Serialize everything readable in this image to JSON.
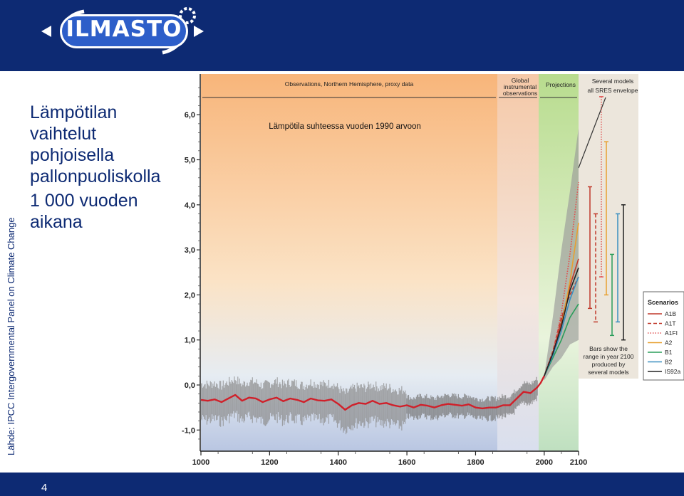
{
  "header": {
    "logo_text": "ILMASTO"
  },
  "source": "Lähde: IPCC Intergovernmental Panel on Climate Change",
  "title_lines": [
    "Lämpötilan",
    "vaihtelut",
    "pohjoisella",
    "pallonpuoliskolla",
    "1 000 vuoden",
    "aikana"
  ],
  "page_number": "4",
  "chart_data": {
    "type": "line",
    "annotation": "Lämpötila suhteessa vuoden 1990 arvoon",
    "x_ticks": [
      "1000",
      "1200",
      "1400",
      "1600",
      "1800",
      "2000",
      "2100"
    ],
    "y_ticks": [
      "-1,0",
      "0,0",
      "1,0",
      "2,0",
      "3,0",
      "4,0",
      "5,0",
      "6,0"
    ],
    "xlim": [
      1000,
      2100
    ],
    "ylim": [
      -1.4,
      7.2
    ],
    "panels": {
      "observations": "Observations, Northern Hemisphere, proxy data",
      "instrumental": [
        "Global",
        "instrumental",
        "observations"
      ],
      "projections": "Projections",
      "envelope": [
        "Several models",
        "all SRES envelope"
      ]
    },
    "bars_note": [
      "Bars show the",
      "range in year 2100",
      "produced by",
      "several models"
    ],
    "legend_title": "Scenarios",
    "series": [
      {
        "name": "A1B",
        "color": "#c0392b",
        "dash": "solid",
        "x": [
          2000,
          2025,
          2050,
          2075,
          2100
        ],
        "values": [
          0.2,
          0.7,
          1.4,
          2.2,
          2.8
        ],
        "range": [
          1.7,
          4.4
        ]
      },
      {
        "name": "A1T",
        "color": "#c0392b",
        "dash": "dashed",
        "x": [
          2000,
          2025,
          2050,
          2075,
          2100
        ],
        "values": [
          0.2,
          0.75,
          1.5,
          2.0,
          2.4
        ],
        "range": [
          1.4,
          3.8
        ]
      },
      {
        "name": "A1FI",
        "color": "#e05050",
        "dash": "dotted",
        "x": [
          2000,
          2025,
          2050,
          2075,
          2100
        ],
        "values": [
          0.2,
          0.7,
          1.6,
          2.9,
          4.5
        ],
        "range": [
          2.4,
          6.4
        ]
      },
      {
        "name": "A2",
        "color": "#e8a030",
        "dash": "solid",
        "x": [
          2000,
          2025,
          2050,
          2075,
          2100
        ],
        "values": [
          0.2,
          0.65,
          1.3,
          2.3,
          3.6
        ],
        "range": [
          2.0,
          5.4
        ]
      },
      {
        "name": "B1",
        "color": "#2a9d5a",
        "dash": "solid",
        "x": [
          2000,
          2025,
          2050,
          2075,
          2100
        ],
        "values": [
          0.2,
          0.6,
          1.0,
          1.5,
          1.8
        ],
        "range": [
          1.1,
          2.9
        ]
      },
      {
        "name": "B2",
        "color": "#3a8fc0",
        "dash": "solid",
        "x": [
          2000,
          2025,
          2050,
          2075,
          2100
        ],
        "values": [
          0.2,
          0.65,
          1.2,
          1.9,
          2.4
        ],
        "range": [
          1.4,
          3.8
        ]
      },
      {
        "name": "IS92a",
        "color": "#222222",
        "dash": "solid",
        "x": [
          2000,
          2025,
          2050,
          2075,
          2100
        ],
        "values": [
          0.2,
          0.7,
          1.3,
          2.1,
          2.6
        ],
        "range": [
          1.0,
          4.0
        ]
      }
    ],
    "proxy_series": {
      "color": "#d0202a",
      "x": [
        1000,
        1020,
        1040,
        1060,
        1080,
        1100,
        1120,
        1140,
        1160,
        1180,
        1200,
        1220,
        1240,
        1260,
        1280,
        1300,
        1320,
        1340,
        1360,
        1380,
        1400,
        1420,
        1440,
        1460,
        1480,
        1500,
        1520,
        1540,
        1560,
        1580,
        1600,
        1620,
        1640,
        1660,
        1680,
        1700,
        1720,
        1740,
        1760,
        1780,
        1800,
        1820,
        1840,
        1860,
        1880,
        1900,
        1920,
        1940,
        1960,
        1980,
        1990,
        2000
      ],
      "values": [
        -0.33,
        -0.35,
        -0.32,
        -0.38,
        -0.3,
        -0.22,
        -0.35,
        -0.28,
        -0.3,
        -0.38,
        -0.32,
        -0.28,
        -0.36,
        -0.3,
        -0.33,
        -0.38,
        -0.3,
        -0.34,
        -0.35,
        -0.32,
        -0.42,
        -0.55,
        -0.45,
        -0.4,
        -0.42,
        -0.35,
        -0.42,
        -0.4,
        -0.45,
        -0.48,
        -0.45,
        -0.5,
        -0.44,
        -0.46,
        -0.5,
        -0.45,
        -0.42,
        -0.44,
        -0.46,
        -0.43,
        -0.5,
        -0.52,
        -0.5,
        -0.5,
        -0.45,
        -0.45,
        -0.3,
        -0.15,
        -0.18,
        -0.05,
        0.05,
        0.2
      ]
    }
  }
}
